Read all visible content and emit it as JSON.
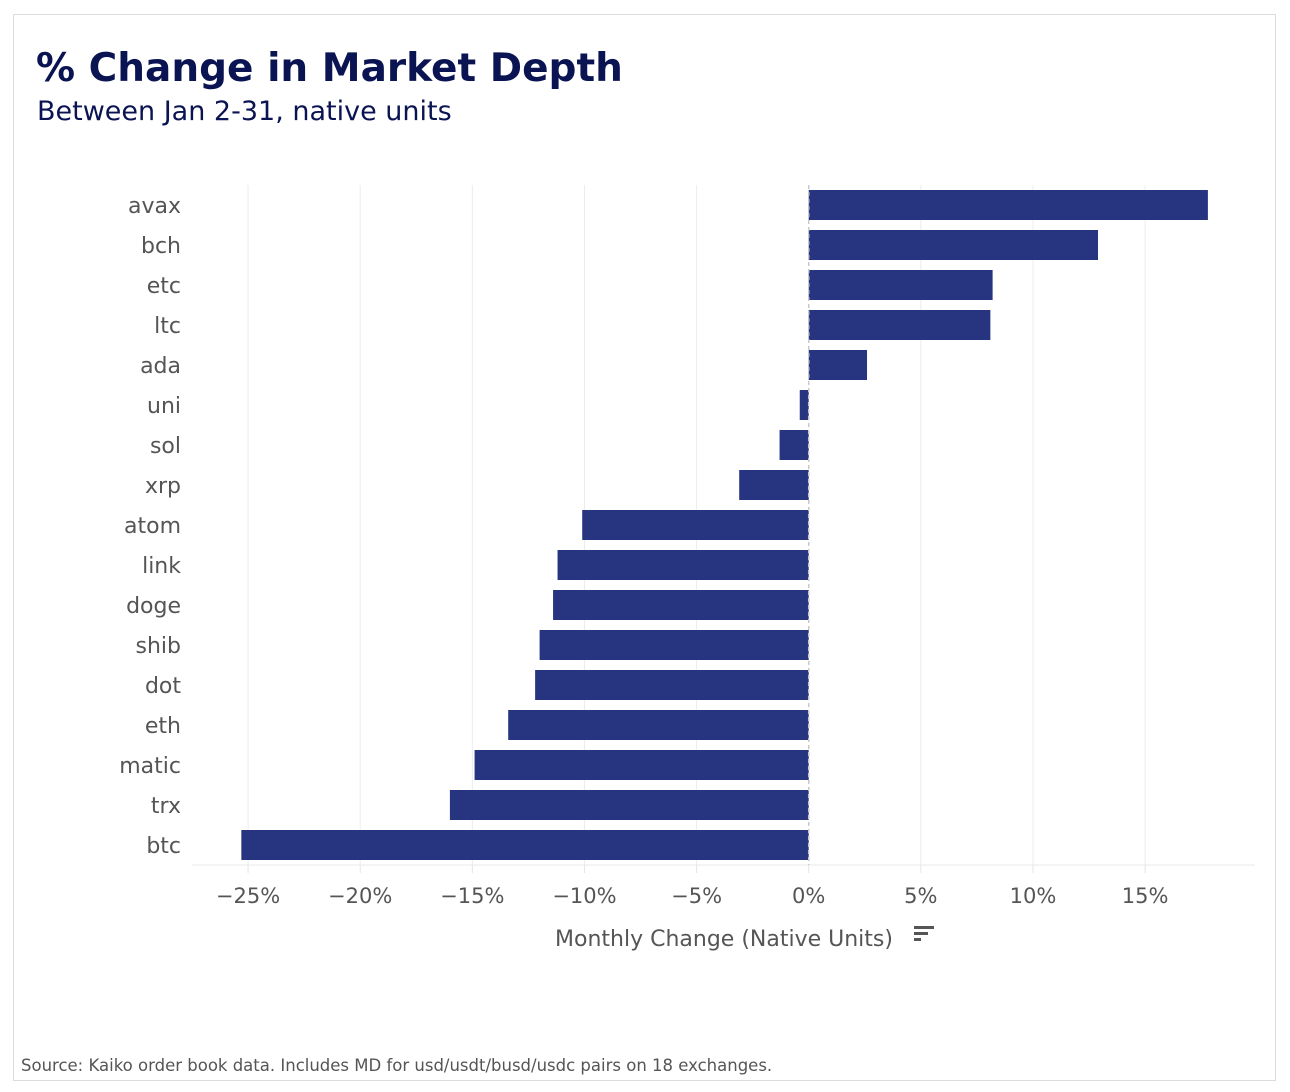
{
  "chart_data": {
    "type": "bar",
    "orientation": "horizontal",
    "title": "% Change in Market Depth",
    "subtitle": "Between Jan 2-31, native units",
    "xlabel": "Monthly Change (Native Units)",
    "ylabel": "",
    "categories": [
      "avax",
      "bch",
      "etc",
      "ltc",
      "ada",
      "uni",
      "sol",
      "xrp",
      "atom",
      "link",
      "doge",
      "shib",
      "dot",
      "eth",
      "matic",
      "trx",
      "btc"
    ],
    "values": [
      17.8,
      12.9,
      8.2,
      8.1,
      2.6,
      -0.4,
      -1.3,
      -3.1,
      -10.1,
      -11.2,
      -11.4,
      -12.0,
      -12.2,
      -13.4,
      -14.9,
      -16.0,
      -25.3
    ],
    "unit": "%",
    "xlim": [
      -27.5,
      19.9
    ],
    "xticks": [
      -25,
      -20,
      -15,
      -10,
      -5,
      0,
      5,
      10,
      15
    ],
    "xtick_labels": [
      "−25%",
      "−20%",
      "−15%",
      "−10%",
      "−5%",
      "0%",
      "5%",
      "10%",
      "15%"
    ],
    "grid": true,
    "bar_color": "#273580",
    "icon": "sort-icon",
    "source": "Source: Kaiko order book data. Includes MD for usd/usdt/busd/usdc pairs on 18 exchanges."
  }
}
